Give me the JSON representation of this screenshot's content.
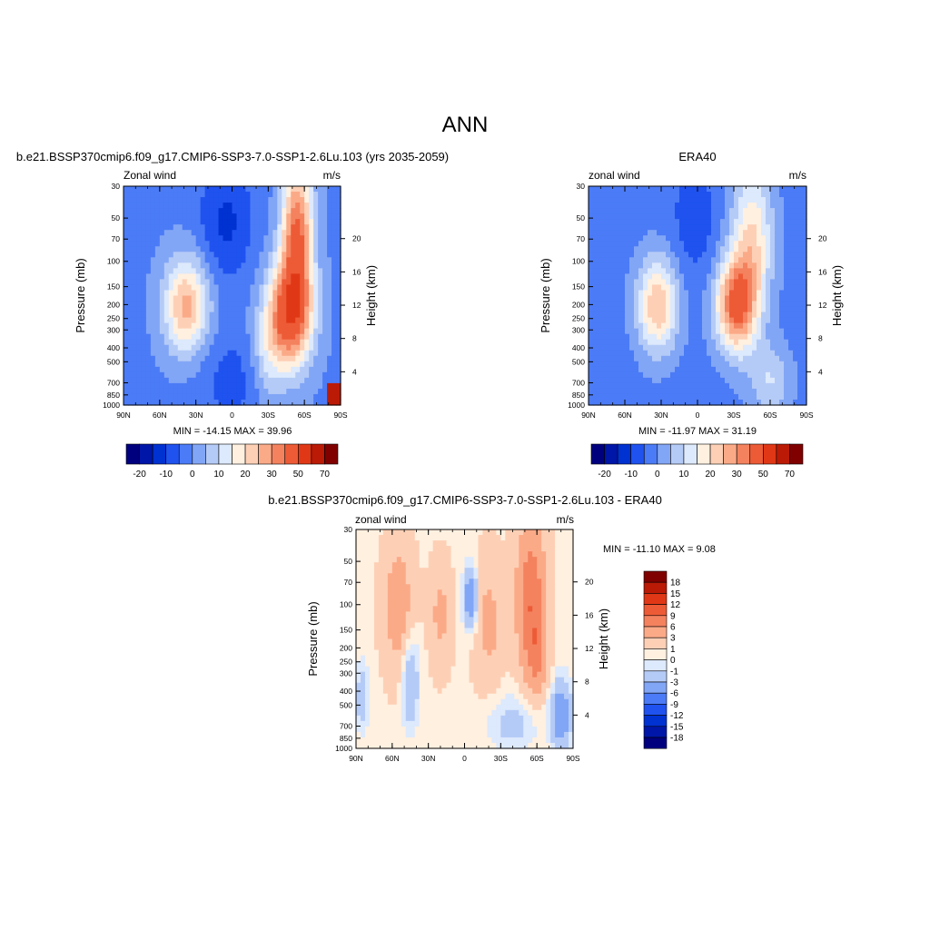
{
  "figure": {
    "title": "ANN"
  },
  "colors": {
    "full_palette": [
      "#00007f",
      "#0016a8",
      "#0031d1",
      "#1f52ef",
      "#4b7bf6",
      "#82a6f6",
      "#b5cbf7",
      "#dde9fc",
      "#fff0e0",
      "#fdd0b6",
      "#fbaa88",
      "#f4825f",
      "#ed5b36",
      "#e03816",
      "#bb1a06",
      "#800000"
    ],
    "diff_palette": [
      "#00007f",
      "#0016a8",
      "#0031d1",
      "#1f52ef",
      "#4b7bf6",
      "#82a6f6",
      "#b5cbf7",
      "#dde9fc",
      "#fff0e0",
      "#fdd0b6",
      "#fbaa88",
      "#f4825f",
      "#ed5b36",
      "#e03816",
      "#bb1a06",
      "#800000"
    ]
  },
  "panels": [
    {
      "title": "b.e21.BSSP370cmip6.f09_g17.CMIP6-SSP3-7.0-SSP1-2.6Lu.103 (yrs 2035-2059)",
      "left_label": "Zonal wind",
      "right_label": "m/s",
      "stats": "MIN = -14.15  MAX =  39.96",
      "field": "model"
    },
    {
      "title": "ERA40",
      "left_label": "zonal wind",
      "right_label": "m/s",
      "stats": "MIN = -11.97  MAX =  31.19",
      "field": "obs"
    },
    {
      "title": "b.e21.BSSP370cmip6.f09_g17.CMIP6-SSP3-7.0-SSP1-2.6Lu.103 - ERA40",
      "left_label": "zonal wind",
      "right_label": "m/s",
      "stats": "MIN = -11.10  MAX =   9.08",
      "field": "diff"
    }
  ],
  "axes": {
    "ylabel": "Pressure (mb)",
    "y2label": "Height (km)",
    "pressure_ticks": [
      "30",
      "50",
      "70",
      "100",
      "150",
      "200",
      "250",
      "300",
      "400",
      "500",
      "700",
      "850",
      "1000"
    ],
    "height_ticks": [
      "20",
      "16",
      "12",
      "8",
      "4"
    ],
    "lat_ticks": [
      "90N",
      "60N",
      "30N",
      "0",
      "30S",
      "60S",
      "90S"
    ]
  },
  "colorbars": {
    "full_labels": [
      "-20",
      "-10",
      "0",
      "10",
      "20",
      "30",
      "50",
      "70"
    ],
    "diff_labels": [
      "18",
      "15",
      "12",
      "9",
      "6",
      "3",
      "1",
      "0",
      "-1",
      "-3",
      "-6",
      "-9",
      "-12",
      "-15",
      "-18"
    ]
  },
  "chart_data": [
    {
      "type": "heatmap",
      "title": "b.e21.BSSP370cmip6.f09_g17.CMIP6-SSP3-7.0-SSP1-2.6Lu.103 (yrs 2035-2059)",
      "variable": "Zonal wind",
      "units": "m/s",
      "x": [
        90,
        60,
        30,
        0,
        -30,
        -60,
        -90
      ],
      "y_pressure": [
        30,
        50,
        70,
        100,
        150,
        200,
        250,
        300,
        400,
        500,
        700,
        850,
        1000
      ],
      "ylabel": "Pressure (mb)",
      "y2label": "Height (km)",
      "min": -14.15,
      "max": 39.96,
      "levels": [
        -25,
        -20,
        -15,
        -10,
        -5,
        0,
        5,
        10,
        15,
        20,
        25,
        30,
        40,
        50,
        60,
        70
      ],
      "features": [
        {
          "lat": 40,
          "p": 200,
          "value": 22
        },
        {
          "lat": -48,
          "p": 200,
          "value": 36
        },
        {
          "lat": -52,
          "p": 40,
          "value": 39
        },
        {
          "lat": 5,
          "p": 40,
          "value": -14
        },
        {
          "lat": 0,
          "p": 800,
          "value": -10
        }
      ]
    },
    {
      "type": "heatmap",
      "title": "ERA40",
      "variable": "zonal wind",
      "units": "m/s",
      "x": [
        90,
        60,
        30,
        0,
        -30,
        -60,
        -90
      ],
      "y_pressure": [
        30,
        50,
        70,
        100,
        150,
        200,
        250,
        300,
        400,
        500,
        700,
        850,
        1000
      ],
      "ylabel": "Pressure (mb)",
      "y2label": "Height (km)",
      "min": -11.97,
      "max": 31.19,
      "levels": [
        -25,
        -20,
        -15,
        -10,
        -5,
        0,
        5,
        10,
        15,
        20,
        25,
        30,
        40,
        50,
        60,
        70
      ],
      "features": [
        {
          "lat": 35,
          "p": 200,
          "value": 20
        },
        {
          "lat": -30,
          "p": 200,
          "value": 31
        },
        {
          "lat": -50,
          "p": 50,
          "value": 24
        },
        {
          "lat": 0,
          "p": 40,
          "value": -12
        },
        {
          "lat": 0,
          "p": 500,
          "value": -8
        }
      ]
    },
    {
      "type": "heatmap",
      "title": "b.e21.BSSP370cmip6.f09_g17.CMIP6-SSP3-7.0-SSP1-2.6Lu.103 - ERA40",
      "variable": "zonal wind",
      "units": "m/s",
      "x": [
        90,
        60,
        30,
        0,
        -30,
        -60,
        -90
      ],
      "y_pressure": [
        30,
        50,
        70,
        100,
        150,
        200,
        250,
        300,
        400,
        500,
        700,
        850,
        1000
      ],
      "ylabel": "Pressure (mb)",
      "y2label": "Height (km)",
      "min": -11.1,
      "max": 9.08,
      "levels": [
        -18,
        -15,
        -12,
        -9,
        -6,
        -3,
        -1,
        0,
        1,
        3,
        6,
        9,
        12,
        15,
        18
      ],
      "features": [
        {
          "lat": -55,
          "p": 60,
          "value": 9
        },
        {
          "lat": 60,
          "p": 100,
          "value": 4
        },
        {
          "lat": -5,
          "p": 60,
          "value": -6
        },
        {
          "lat": 50,
          "p": 350,
          "value": -3
        },
        {
          "lat": -80,
          "p": 750,
          "value": -6
        }
      ]
    }
  ]
}
